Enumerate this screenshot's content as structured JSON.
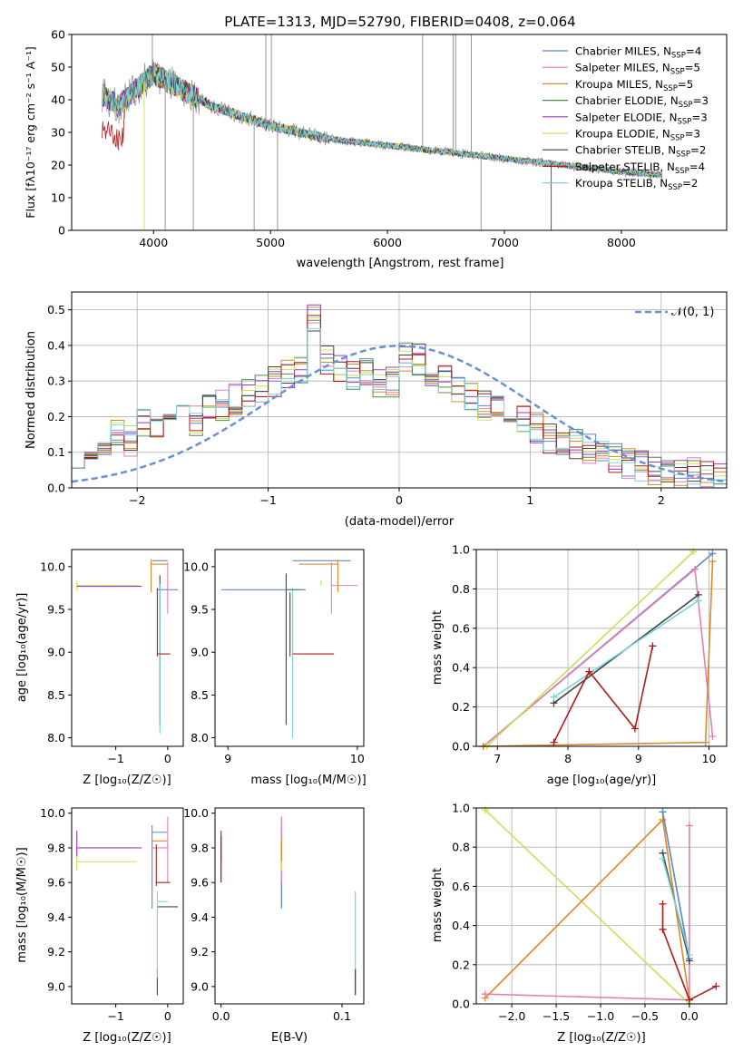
{
  "chart_data": [
    {
      "id": "spectrum",
      "type": "line",
      "title": "PLATE=1313, MJD=52790, FIBERID=0408, z=0.064",
      "xlabel": "wavelength [Angstrom, rest frame]",
      "ylabel": "Flux [fλ10⁻¹⁷ erg cm⁻² s⁻¹ A⁻¹]",
      "xlim": [
        3300,
        8900
      ],
      "ylim": [
        0,
        60
      ],
      "xticks": [
        4000,
        5000,
        6000,
        7000,
        8000
      ],
      "yticks": [
        0,
        10,
        20,
        30,
        40,
        50,
        60
      ],
      "grid": false,
      "legend_position": "top-right",
      "series": [
        {
          "name": "Chabrier MILES, N_SSP=4",
          "color": "#5f87c7"
        },
        {
          "name": "Salpeter MILES, N_SSP=5",
          "color": "#e47fb5"
        },
        {
          "name": "Kroupa MILES, N_SSP=5",
          "color": "#d98a2b"
        },
        {
          "name": "Chabrier ELODIE, N_SSP=3",
          "color": "#4d8a4d"
        },
        {
          "name": "Salpeter ELODIE, N_SSP=3",
          "color": "#9b3bbf"
        },
        {
          "name": "Kroupa ELODIE, N_SSP=3",
          "color": "#c9e05a"
        },
        {
          "name": "Chabrier STELIB, N_SSP=2",
          "color": "#444444"
        },
        {
          "name": "Salpeter STELIB, N_SSP=4",
          "color": "#b01c1c"
        },
        {
          "name": "Kroupa STELIB, N_SSP=2",
          "color": "#7ad3dc"
        },
        {
          "name": "data",
          "color": "#8a8a8a"
        }
      ],
      "continuum_x": [
        3550,
        3700,
        3900,
        4000,
        4200,
        4500,
        5000,
        5500,
        6000,
        6500,
        7000,
        7500,
        8000,
        8300
      ],
      "continuum_y": [
        42,
        38,
        45,
        48,
        44,
        38,
        32,
        28,
        26,
        24,
        22,
        20,
        18,
        17
      ]
    },
    {
      "id": "residuals",
      "type": "line",
      "xlabel": "(data-model)/error",
      "ylabel": "Normed distribution",
      "xlim": [
        -2.5,
        2.5
      ],
      "ylim": [
        0,
        0.55
      ],
      "xticks": [
        -2,
        -1,
        0,
        1,
        2
      ],
      "yticks": [
        0.0,
        0.1,
        0.2,
        0.3,
        0.4,
        0.5
      ],
      "grid": true,
      "legend_position": "top-right",
      "legend_label": "𝒩(0, 1)",
      "gaussian_color": "#6a8fd4",
      "hist_bin_width": 0.1,
      "hist_x_start": -2.5,
      "hist_values": [
        0.1,
        0.12,
        0.11,
        0.15,
        0.13,
        0.18,
        0.17,
        0.2,
        0.22,
        0.19,
        0.24,
        0.23,
        0.25,
        0.26,
        0.28,
        0.3,
        0.32,
        0.34,
        0.48,
        0.36,
        0.33,
        0.31,
        0.32,
        0.3,
        0.3,
        0.37,
        0.36,
        0.33,
        0.3,
        0.27,
        0.25,
        0.23,
        0.22,
        0.2,
        0.19,
        0.17,
        0.14,
        0.13,
        0.12,
        0.11,
        0.1,
        0.08,
        0.07,
        0.06,
        0.05,
        0.05,
        0.04,
        0.04,
        0.03,
        0.03
      ]
    },
    {
      "id": "age_vs_Z",
      "type": "scatter",
      "xlabel": "Z [log₁₀(Z/Z☉)]",
      "ylabel": "age  [log₁₀(age/yr)]",
      "xlim": [
        -1.85,
        0.3
      ],
      "ylim": [
        7.9,
        10.2
      ],
      "xticks": [
        -1,
        0
      ],
      "yticks": [
        8.0,
        8.5,
        9.0,
        9.5,
        10.0
      ]
    },
    {
      "id": "age_vs_mass",
      "type": "scatter",
      "xlabel": "mass [log₁₀(M/M☉)]",
      "xlim": [
        8.9,
        10.05
      ],
      "ylim": [
        7.9,
        10.2
      ],
      "xticks": [
        9,
        10
      ],
      "yticks": [
        8.0,
        8.5,
        9.0,
        9.5,
        10.0
      ]
    },
    {
      "id": "massweight_vs_age",
      "type": "line",
      "xlabel": "age  [log₁₀(age/yr)]",
      "ylabel": "mass weight",
      "xlim": [
        6.7,
        10.25
      ],
      "ylim": [
        0,
        1
      ],
      "xticks": [
        7,
        8,
        9,
        10
      ],
      "yticks": [
        0.0,
        0.2,
        0.4,
        0.6,
        0.8,
        1.0
      ],
      "grid": true,
      "series": [
        {
          "color": "#5f87c7",
          "x": [
            6.8,
            10.05
          ],
          "y": [
            0.0,
            0.98
          ]
        },
        {
          "color": "#e47fb5",
          "x": [
            6.8,
            9.8,
            10.05
          ],
          "y": [
            0.0,
            0.9,
            0.05
          ]
        },
        {
          "color": "#d98a2b",
          "x": [
            6.8,
            9.95,
            10.05
          ],
          "y": [
            0.0,
            0.02,
            0.94
          ]
        },
        {
          "color": "#c9e05a",
          "x": [
            6.85,
            9.78
          ],
          "y": [
            0.0,
            0.99
          ]
        },
        {
          "color": "#444444",
          "x": [
            7.8,
            9.85
          ],
          "y": [
            0.22,
            0.77
          ]
        },
        {
          "color": "#7ad3dc",
          "x": [
            7.8,
            9.85
          ],
          "y": [
            0.25,
            0.74
          ]
        },
        {
          "color": "#b01c1c",
          "x": [
            7.8,
            8.3,
            8.95,
            9.2
          ],
          "y": [
            0.02,
            0.38,
            0.09,
            0.51
          ]
        }
      ]
    },
    {
      "id": "mass_vs_Z",
      "type": "scatter",
      "xlabel": "Z [log₁₀(Z/Z☉)]",
      "ylabel": "mass [log₁₀(M/M☉)]",
      "xlim": [
        -1.85,
        0.3
      ],
      "ylim": [
        8.9,
        10.03
      ],
      "xticks": [
        -1,
        0
      ],
      "yticks": [
        9.0,
        9.2,
        9.4,
        9.6,
        9.8,
        10.0
      ]
    },
    {
      "id": "mass_vs_EBV",
      "type": "scatter",
      "xlabel": "E(B-V)",
      "xlim": [
        -0.005,
        0.118
      ],
      "ylim": [
        8.9,
        10.03
      ],
      "xticks": [
        0.0,
        0.1
      ],
      "yticks": [
        9.0,
        9.2,
        9.4,
        9.6,
        9.8,
        10.0
      ]
    },
    {
      "id": "massweight_vs_Z",
      "type": "line",
      "xlabel": "Z [log₁₀(Z/Z☉)]",
      "ylabel": "mass weight",
      "xlim": [
        -2.4,
        0.42
      ],
      "ylim": [
        0,
        1
      ],
      "xticks": [
        -2.0,
        -1.5,
        -1.0,
        -0.5,
        0.0
      ],
      "yticks": [
        0.0,
        0.2,
        0.4,
        0.6,
        0.8,
        1.0
      ],
      "grid": true,
      "series": [
        {
          "color": "#c9e05a",
          "x": [
            -2.3,
            0.0
          ],
          "y": [
            0.99,
            0.0
          ]
        },
        {
          "color": "#d98a2b",
          "x": [
            -2.3,
            -0.3,
            0.0
          ],
          "y": [
            0.03,
            0.94,
            0.02
          ]
        },
        {
          "color": "#e47fb5",
          "x": [
            -2.3,
            0.0,
            0.0
          ],
          "y": [
            0.05,
            0.02,
            0.91
          ]
        },
        {
          "color": "#5f87c7",
          "x": [
            -0.3,
            0.0
          ],
          "y": [
            0.98,
            0.23
          ]
        },
        {
          "color": "#444444",
          "x": [
            -0.3,
            0.0
          ],
          "y": [
            0.77,
            0.22
          ]
        },
        {
          "color": "#7ad3dc",
          "x": [
            -0.3,
            0.0
          ],
          "y": [
            0.74,
            0.25
          ]
        },
        {
          "color": "#b01c1c",
          "x": [
            -0.3,
            -0.3,
            0.0,
            0.3
          ],
          "y": [
            0.51,
            0.38,
            0.02,
            0.09
          ]
        }
      ]
    }
  ]
}
